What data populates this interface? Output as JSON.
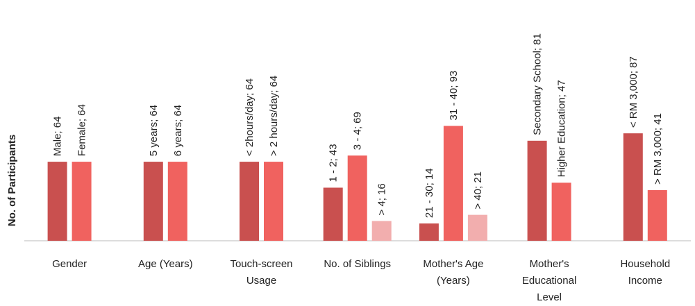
{
  "chart_data": {
    "type": "bar",
    "y_label": "No. of Participants",
    "ylim": [
      0,
      100
    ],
    "groups": [
      {
        "label": [
          "Gender"
        ],
        "bars": [
          {
            "value": 64,
            "label": "Male; 64",
            "color": "#c9504f"
          },
          {
            "value": 64,
            "label": "Female; 64",
            "color": "#f0625f"
          }
        ]
      },
      {
        "label": [
          "Age (Years)"
        ],
        "bars": [
          {
            "value": 64,
            "label": "5 years; 64",
            "color": "#c9504f"
          },
          {
            "value": 64,
            "label": "6 years; 64",
            "color": "#f0625f"
          }
        ]
      },
      {
        "label": [
          "Touch-screen",
          "Usage"
        ],
        "bars": [
          {
            "value": 64,
            "label": "< 2hours/day; 64",
            "color": "#c9504f"
          },
          {
            "value": 64,
            "label": "> 2 hours/day; 64",
            "color": "#f0625f"
          }
        ]
      },
      {
        "label": [
          "No. of Siblings"
        ],
        "bars": [
          {
            "value": 43,
            "label": "1 - 2; 43",
            "color": "#c9504f"
          },
          {
            "value": 69,
            "label": "3 - 4; 69",
            "color": "#f0625f"
          },
          {
            "value": 16,
            "label": "> 4; 16",
            "color": "#f2aeae"
          }
        ]
      },
      {
        "label": [
          "Mother's Age",
          "(Years)"
        ],
        "bars": [
          {
            "value": 14,
            "label": "21 - 30; 14",
            "color": "#c9504f"
          },
          {
            "value": 93,
            "label": "31 - 40; 93",
            "color": "#f0625f"
          },
          {
            "value": 21,
            "label": "> 40; 21",
            "color": "#f2aeae"
          }
        ]
      },
      {
        "label": [
          "Mother's",
          "Educational",
          "Level"
        ],
        "bars": [
          {
            "value": 81,
            "label": "Secondary School; 81",
            "color": "#c9504f"
          },
          {
            "value": 47,
            "label": "Higher Education; 47",
            "color": "#f0625f"
          }
        ]
      },
      {
        "label": [
          "Household",
          "Income"
        ],
        "bars": [
          {
            "value": 87,
            "label": "< RM 3,000; 87",
            "color": "#c9504f"
          },
          {
            "value": 41,
            "label": "> RM 3,000; 41",
            "color": "#f0625f"
          }
        ]
      }
    ]
  }
}
